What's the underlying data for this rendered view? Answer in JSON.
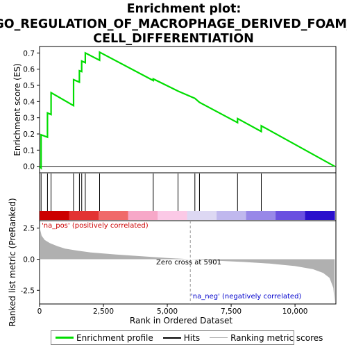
{
  "chart_data": {
    "type": "line",
    "title_lines": [
      "Enrichment plot:",
      "GO_REGULATION_OF_MACROPHAGE_DERIVED_FOAM_",
      "CELL_DIFFERENTIATION"
    ],
    "xlabel": "Rank in Ordered Dataset",
    "ylabel_top": "Enrichment score (ES)",
    "ylabel_bottom": "Ranked list metric (PreRanked)",
    "xlim": [
      0,
      11600
    ],
    "es_ylim": [
      -0.04,
      0.74
    ],
    "metric_ylim": [
      -3.6,
      3.1
    ],
    "x_ticks": [
      0,
      2500,
      5000,
      7500,
      10000
    ],
    "x_tick_labels": [
      "0",
      "2,500",
      "5,000",
      "7,500",
      "10,000"
    ],
    "es_ticks": [
      0.0,
      0.1,
      0.2,
      0.3,
      0.4,
      0.5,
      0.6,
      0.7
    ],
    "es_tick_labels": [
      "0.0",
      "0.1",
      "0.2",
      "0.3",
      "0.4",
      "0.5",
      "0.6",
      "0.7"
    ],
    "metric_ticks": [
      2.5,
      0.0,
      -2.5
    ],
    "metric_tick_labels": [
      "2.5",
      "0.0",
      "-2.5"
    ],
    "hits": [
      60,
      310,
      450,
      1330,
      1560,
      1650,
      1790,
      2350,
      4450,
      5420,
      6080,
      6260,
      7750,
      8680
    ],
    "es_curve": [
      [
        0,
        0.0
      ],
      [
        60,
        -0.01
      ],
      [
        60,
        0.195
      ],
      [
        310,
        0.18
      ],
      [
        310,
        0.33
      ],
      [
        450,
        0.32
      ],
      [
        450,
        0.455
      ],
      [
        1330,
        0.375
      ],
      [
        1330,
        0.535
      ],
      [
        1560,
        0.52
      ],
      [
        1560,
        0.59
      ],
      [
        1650,
        0.585
      ],
      [
        1650,
        0.65
      ],
      [
        1790,
        0.64
      ],
      [
        1790,
        0.7
      ],
      [
        2350,
        0.655
      ],
      [
        2350,
        0.705
      ],
      [
        4450,
        0.53
      ],
      [
        4450,
        0.54
      ],
      [
        5420,
        0.465
      ],
      [
        6080,
        0.42
      ],
      [
        6260,
        0.395
      ],
      [
        7750,
        0.27
      ],
      [
        7750,
        0.295
      ],
      [
        8680,
        0.215
      ],
      [
        8680,
        0.25
      ],
      [
        11550,
        0.0
      ]
    ],
    "metric_curve": [
      [
        0,
        2.6
      ],
      [
        80,
        1.9
      ],
      [
        200,
        1.55
      ],
      [
        400,
        1.3
      ],
      [
        700,
        1.05
      ],
      [
        1000,
        0.85
      ],
      [
        1500,
        0.68
      ],
      [
        2000,
        0.55
      ],
      [
        3000,
        0.38
      ],
      [
        4000,
        0.24
      ],
      [
        5000,
        0.1
      ],
      [
        5901,
        0.0
      ],
      [
        7000,
        -0.12
      ],
      [
        8000,
        -0.22
      ],
      [
        9000,
        -0.35
      ],
      [
        10000,
        -0.55
      ],
      [
        10700,
        -0.8
      ],
      [
        11100,
        -1.1
      ],
      [
        11350,
        -1.5
      ],
      [
        11500,
        -2.3
      ],
      [
        11550,
        -3.5
      ]
    ],
    "zero_cross": 5901,
    "zero_cross_label": "Zero cross at 5901",
    "pos_label": "'na_pos' (positively correlated)",
    "neg_label": "'na_neg' (negatively correlated)",
    "heat_colors": [
      "#cc0000",
      "#e33333",
      "#f06a6a",
      "#f7a8c8",
      "#fbc9e6",
      "#ddd8f3",
      "#c0b8ee",
      "#9888e8",
      "#6a50e0",
      "#2a10cc"
    ],
    "colors": {
      "es_line": "#00dd00",
      "hit_line": "#000000",
      "metric_fill": "#b0b0b0",
      "pos_text": "#cc0000",
      "neg_text": "#0000cc"
    },
    "legend": [
      {
        "label": "Enrichment profile",
        "kind": "es"
      },
      {
        "label": "Hits",
        "kind": "hits"
      },
      {
        "label": "Ranking metric scores",
        "kind": "metric"
      }
    ]
  }
}
